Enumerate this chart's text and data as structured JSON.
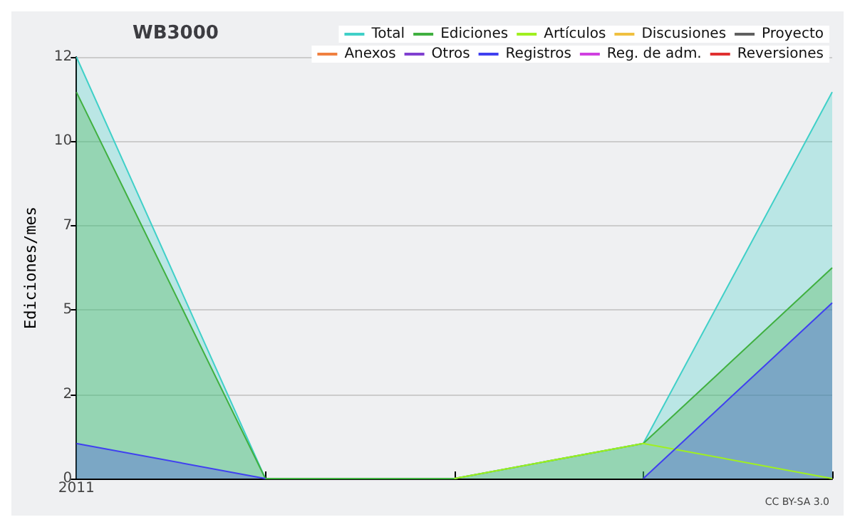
{
  "chart_data": {
    "type": "area",
    "title": "WB3000",
    "ylabel": "Ediciones/mes",
    "categories": [
      "2011",
      null,
      null,
      null,
      null
    ],
    "series": [
      {
        "name": "Total",
        "color": "#40d0c8",
        "values": [
          12,
          0,
          0,
          1,
          11
        ]
      },
      {
        "name": "Ediciones",
        "color": "#40b040",
        "values": [
          11,
          0,
          0,
          1,
          6
        ]
      },
      {
        "name": "Artículos",
        "color": "#a0f020",
        "type": "line",
        "values": [
          null,
          null,
          0,
          1,
          0
        ]
      },
      {
        "name": "Discusiones",
        "color": "#f0c040",
        "type": "line",
        "values": [
          null,
          null,
          null,
          null,
          null
        ]
      },
      {
        "name": "Proyecto",
        "color": "#606060",
        "type": "line",
        "values": [
          null,
          null,
          null,
          null,
          null
        ]
      },
      {
        "name": "Anexos",
        "color": "#f08040",
        "type": "line",
        "values": [
          null,
          null,
          null,
          null,
          null
        ]
      },
      {
        "name": "Otros",
        "color": "#8040d0",
        "type": "line",
        "values": [
          null,
          null,
          null,
          null,
          null
        ]
      },
      {
        "name": "Registros",
        "color": "#4040f0",
        "values": [
          1,
          0,
          null,
          0,
          5
        ]
      },
      {
        "name": "Reg. de adm.",
        "color": "#d040e0",
        "type": "line",
        "values": [
          null,
          null,
          null,
          null,
          null
        ]
      },
      {
        "name": "Reversiones",
        "color": "#e03030",
        "type": "line",
        "values": [
          null,
          null,
          null,
          null,
          null
        ]
      }
    ],
    "ylim": [
      0,
      12
    ],
    "yticks": [
      {
        "value": 0,
        "label": "0"
      },
      {
        "value": 2.4,
        "label": "2"
      },
      {
        "value": 4.8,
        "label": "5"
      },
      {
        "value": 7.2,
        "label": "7"
      },
      {
        "value": 9.6,
        "label": "10"
      },
      {
        "value": 12,
        "label": "12"
      }
    ],
    "grid": "y",
    "legend": "top right",
    "marker": "none",
    "line_style": "solid",
    "annotations": [
      "CC BY-SA 3.0"
    ]
  }
}
